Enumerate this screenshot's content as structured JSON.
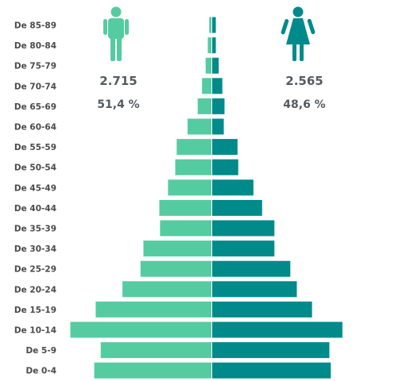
{
  "colors": {
    "male": "#55cba2",
    "female": "#008a8a",
    "text": "#555a60"
  },
  "chart_data": {
    "type": "bar",
    "orientation": "horizontal-population-pyramid",
    "categories": [
      "De 85-89",
      "De 80-84",
      "De 75-79",
      "De 70-74",
      "De 65-69",
      "De 60-64",
      "De 55-59",
      "De 50-54",
      "De 45-49",
      "De 40-44",
      "De 35-39",
      "De 30-34",
      "De 25-29",
      "De 20-24",
      "De 15-19",
      "De 10-14",
      "De 5-9",
      "De 0-4"
    ],
    "series": [
      {
        "key": "male",
        "color": "#55cba2",
        "icon": "male-person-icon",
        "values": [
          3,
          5,
          8,
          13,
          19,
          33,
          48,
          50,
          60,
          72,
          71,
          94,
          98,
          123,
          160,
          195,
          153,
          162
        ]
      },
      {
        "key": "female",
        "color": "#008a8a",
        "icon": "female-person-icon",
        "values": [
          5,
          5,
          9,
          14,
          17,
          16,
          35,
          36,
          57,
          69,
          86,
          86,
          108,
          117,
          138,
          180,
          162,
          164
        ]
      }
    ],
    "xlim": [
      -200,
      200
    ],
    "grid": false,
    "legend": "none"
  },
  "totals": {
    "male": {
      "count": "2.715",
      "percent": "51,4 %"
    },
    "female": {
      "count": "2.565",
      "percent": "48,6 %"
    }
  }
}
